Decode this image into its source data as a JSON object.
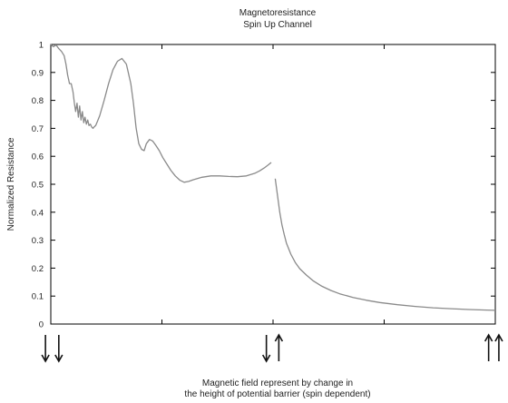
{
  "chart_data": {
    "type": "line",
    "title": "Magnetoresistance",
    "subtitle": "Spin Up Channel",
    "ylabel": "Normalized Resistance",
    "xlabel_line1": "Magnetic field represent by change in",
    "xlabel_line2": "the height of potential barrier (spin dependent)",
    "ylim": [
      0,
      1
    ],
    "xlim": [
      0,
      1
    ],
    "yticks": [
      "0",
      "0.1",
      "0.2",
      "0.3",
      "0.4",
      "0.5",
      "0.6",
      "0.7",
      "0.8",
      "0.9",
      "1"
    ],
    "ytick_values": [
      0,
      0.1,
      0.2,
      0.3,
      0.4,
      0.5,
      0.6,
      0.7,
      0.8,
      0.9,
      1.0
    ],
    "xtick_positions": [
      0.25,
      0.5,
      0.75
    ],
    "grid": false,
    "series": [
      {
        "color": "#8a8a8a",
        "segments": [
          {
            "x": [
              0.0,
              0.006,
              0.012,
              0.018,
              0.024,
              0.03,
              0.034,
              0.038,
              0.042,
              0.046,
              0.05,
              0.053,
              0.056,
              0.059,
              0.062,
              0.065,
              0.068,
              0.071,
              0.074,
              0.077,
              0.08,
              0.083,
              0.086,
              0.089,
              0.092,
              0.095,
              0.098,
              0.101,
              0.105,
              0.11,
              0.12,
              0.13,
              0.14,
              0.15,
              0.16,
              0.17,
              0.18,
              0.186,
              0.192,
              0.198,
              0.204,
              0.21,
              0.215,
              0.222,
              0.229,
              0.236,
              0.244,
              0.252,
              0.26,
              0.27,
              0.28,
              0.29,
              0.3,
              0.31,
              0.32,
              0.34,
              0.36,
              0.38,
              0.4,
              0.42,
              0.44,
              0.46,
              0.47,
              0.48,
              0.49,
              0.496
            ],
            "y": [
              1.0,
              0.992,
              0.998,
              0.985,
              0.975,
              0.96,
              0.93,
              0.89,
              0.86,
              0.86,
              0.83,
              0.79,
              0.76,
              0.79,
              0.74,
              0.78,
              0.73,
              0.76,
              0.72,
              0.74,
              0.715,
              0.73,
              0.71,
              0.715,
              0.705,
              0.7,
              0.706,
              0.71,
              0.725,
              0.745,
              0.8,
              0.86,
              0.91,
              0.94,
              0.95,
              0.93,
              0.86,
              0.79,
              0.7,
              0.645,
              0.625,
              0.62,
              0.645,
              0.66,
              0.655,
              0.64,
              0.62,
              0.595,
              0.575,
              0.55,
              0.53,
              0.515,
              0.507,
              0.51,
              0.516,
              0.525,
              0.53,
              0.53,
              0.528,
              0.527,
              0.53,
              0.54,
              0.548,
              0.558,
              0.57,
              0.578
            ]
          },
          {
            "x": [
              0.505,
              0.51,
              0.515,
              0.52,
              0.525,
              0.53,
              0.54,
              0.55,
              0.56,
              0.575,
              0.59,
              0.61,
              0.63,
              0.65,
              0.68,
              0.71,
              0.74,
              0.78,
              0.82,
              0.86,
              0.9,
              0.94,
              0.98,
              1.0
            ],
            "y": [
              0.52,
              0.46,
              0.4,
              0.355,
              0.32,
              0.29,
              0.25,
              0.22,
              0.198,
              0.175,
              0.155,
              0.135,
              0.12,
              0.108,
              0.095,
              0.085,
              0.077,
              0.069,
              0.063,
              0.058,
              0.055,
              0.052,
              0.05,
              0.049
            ]
          }
        ]
      }
    ],
    "arrow_markers": [
      {
        "x": -0.012,
        "dir": "down"
      },
      {
        "x": 0.018,
        "dir": "down"
      },
      {
        "x": 0.485,
        "dir": "down"
      },
      {
        "x": 0.513,
        "dir": "up"
      },
      {
        "x": 0.985,
        "dir": "up"
      },
      {
        "x": 1.008,
        "dir": "up"
      }
    ]
  }
}
